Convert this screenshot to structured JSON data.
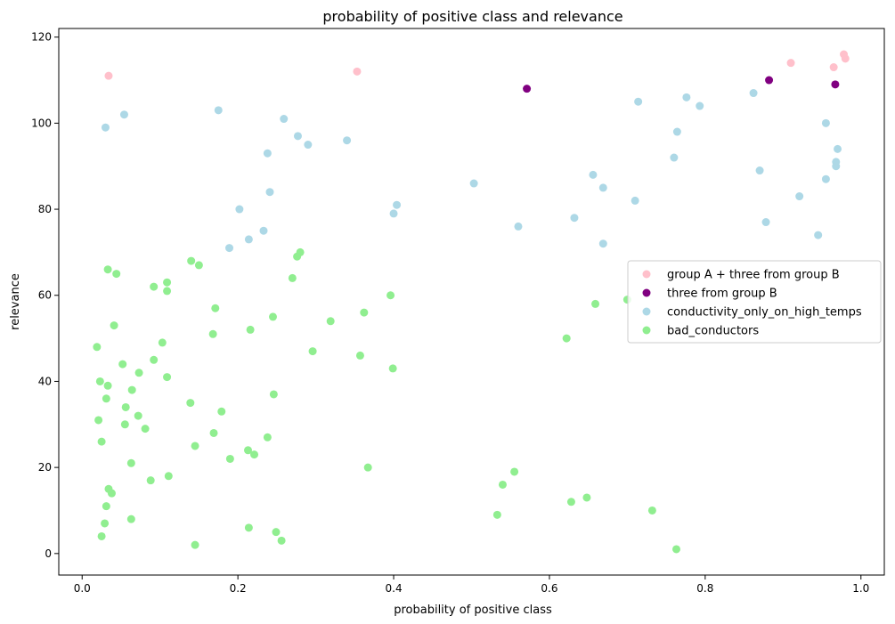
{
  "chart_data": {
    "type": "scatter",
    "title": "probability of positive class and relevance",
    "xlabel": "probability of positive class",
    "ylabel": "relevance",
    "xlim": [
      -0.03,
      1.03
    ],
    "ylim": [
      -5,
      122
    ],
    "xticks": [
      0.0,
      0.2,
      0.4,
      0.6,
      0.8,
      1.0
    ],
    "xtick_labels": [
      "0.0",
      "0.2",
      "0.4",
      "0.6",
      "0.8",
      "1.0"
    ],
    "yticks": [
      0,
      20,
      40,
      60,
      80,
      100,
      120
    ],
    "ytick_labels": [
      "0",
      "20",
      "40",
      "60",
      "80",
      "100",
      "120"
    ],
    "grid": false,
    "legend_position": "center-right",
    "series": [
      {
        "name": "group A + three from group B",
        "color": "#ffc0cb",
        "points": [
          [
            0.034,
            111
          ],
          [
            0.353,
            112
          ],
          [
            0.91,
            114
          ],
          [
            0.965,
            113
          ],
          [
            0.978,
            116
          ],
          [
            0.98,
            115
          ]
        ]
      },
      {
        "name": "three from group B",
        "color": "#800080",
        "points": [
          [
            0.571,
            108
          ],
          [
            0.882,
            110
          ],
          [
            0.967,
            109
          ]
        ]
      },
      {
        "name": "conductivity_only_on_high_temps",
        "color": "#add8e6",
        "points": [
          [
            0.03,
            99
          ],
          [
            0.054,
            102
          ],
          [
            0.175,
            103
          ],
          [
            0.259,
            101
          ],
          [
            0.277,
            97
          ],
          [
            0.29,
            95
          ],
          [
            0.34,
            96
          ],
          [
            0.238,
            93
          ],
          [
            0.241,
            84
          ],
          [
            0.202,
            80
          ],
          [
            0.233,
            75
          ],
          [
            0.214,
            73
          ],
          [
            0.189,
            71
          ],
          [
            0.4,
            79
          ],
          [
            0.404,
            81
          ],
          [
            0.503,
            86
          ],
          [
            0.56,
            76
          ],
          [
            0.632,
            78
          ],
          [
            0.656,
            88
          ],
          [
            0.669,
            85
          ],
          [
            0.669,
            72
          ],
          [
            0.71,
            82
          ],
          [
            0.714,
            105
          ],
          [
            0.76,
            92
          ],
          [
            0.764,
            98
          ],
          [
            0.776,
            106
          ],
          [
            0.793,
            104
          ],
          [
            0.862,
            107
          ],
          [
            0.87,
            89
          ],
          [
            0.878,
            77
          ],
          [
            0.921,
            83
          ],
          [
            0.945,
            74
          ],
          [
            0.955,
            100
          ],
          [
            0.955,
            87
          ],
          [
            0.968,
            91
          ],
          [
            0.968,
            90
          ],
          [
            0.97,
            94
          ]
        ]
      },
      {
        "name": "bad_conductors",
        "color": "#90ee90",
        "points": [
          [
            0.033,
            66
          ],
          [
            0.044,
            65
          ],
          [
            0.019,
            48
          ],
          [
            0.041,
            53
          ],
          [
            0.023,
            40
          ],
          [
            0.033,
            39
          ],
          [
            0.031,
            36
          ],
          [
            0.021,
            31
          ],
          [
            0.025,
            26
          ],
          [
            0.034,
            15
          ],
          [
            0.038,
            14
          ],
          [
            0.031,
            11
          ],
          [
            0.029,
            7
          ],
          [
            0.025,
            4
          ],
          [
            0.052,
            44
          ],
          [
            0.056,
            34
          ],
          [
            0.055,
            30
          ],
          [
            0.064,
            38
          ],
          [
            0.073,
            42
          ],
          [
            0.072,
            32
          ],
          [
            0.081,
            29
          ],
          [
            0.063,
            21
          ],
          [
            0.063,
            8
          ],
          [
            0.088,
            17
          ],
          [
            0.092,
            62
          ],
          [
            0.092,
            45
          ],
          [
            0.103,
            49
          ],
          [
            0.109,
            63
          ],
          [
            0.109,
            61
          ],
          [
            0.109,
            41
          ],
          [
            0.111,
            18
          ],
          [
            0.14,
            68
          ],
          [
            0.15,
            67
          ],
          [
            0.171,
            57
          ],
          [
            0.168,
            51
          ],
          [
            0.139,
            35
          ],
          [
            0.179,
            33
          ],
          [
            0.169,
            28
          ],
          [
            0.145,
            25
          ],
          [
            0.19,
            22
          ],
          [
            0.145,
            2
          ],
          [
            0.216,
            52
          ],
          [
            0.213,
            24
          ],
          [
            0.221,
            23
          ],
          [
            0.214,
            6
          ],
          [
            0.245,
            55
          ],
          [
            0.246,
            37
          ],
          [
            0.238,
            27
          ],
          [
            0.249,
            5
          ],
          [
            0.256,
            3
          ],
          [
            0.27,
            64
          ],
          [
            0.276,
            69
          ],
          [
            0.28,
            70
          ],
          [
            0.296,
            47
          ],
          [
            0.319,
            54
          ],
          [
            0.362,
            56
          ],
          [
            0.357,
            46
          ],
          [
            0.367,
            20
          ],
          [
            0.396,
            60
          ],
          [
            0.399,
            43
          ],
          [
            0.533,
            9
          ],
          [
            0.54,
            16
          ],
          [
            0.555,
            19
          ],
          [
            0.622,
            50
          ],
          [
            0.628,
            12
          ],
          [
            0.648,
            13
          ],
          [
            0.659,
            58
          ],
          [
            0.7,
            59
          ],
          [
            0.732,
            10
          ],
          [
            0.763,
            1
          ]
        ]
      }
    ]
  }
}
